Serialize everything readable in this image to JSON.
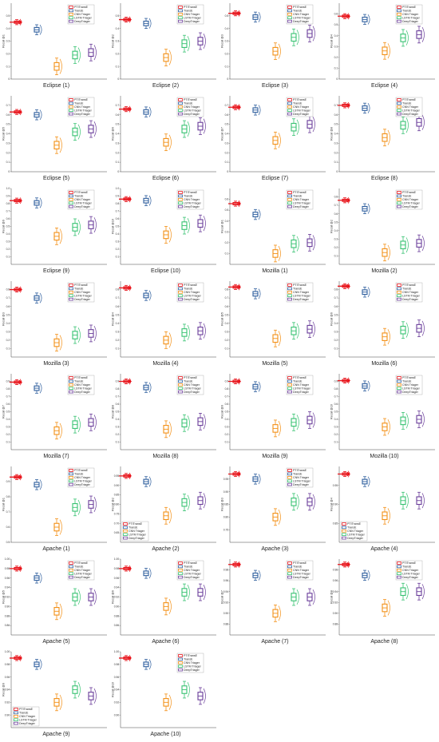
{
  "colors": {
    "PTITransE": "#e8141b",
    "TransE": "#2f5f9e",
    "CNN Triager": "#f39016",
    "LSTM Triager": "#37c271",
    "DeepTriager": "#6a3d9a"
  },
  "chart_data": [
    {
      "type": "box",
      "caption": "Eclipse (1)",
      "ylabel": "Recall @1",
      "ylim": [
        0,
        0.6
      ],
      "yticks": [
        "0",
        "0.1",
        "0.2",
        "0.3",
        "0.4",
        "0.5"
      ],
      "legend": [
        "PTITransE",
        "TransE",
        "CNN Triager",
        "LSTM Triager",
        "DeepTriager"
      ],
      "legend_position": "top-right",
      "medians": [
        0.45,
        0.39,
        0.1,
        0.19,
        0.21
      ]
    },
    {
      "type": "box",
      "caption": "Eclipse (2)",
      "ylabel": "Recall @2",
      "ylim": [
        0,
        0.6
      ],
      "yticks": [
        "0",
        "0.1",
        "0.2",
        "0.3",
        "0.4",
        "0.5"
      ],
      "legend": [
        "PTITransE",
        "TransE",
        "CNN Triager",
        "LSTM Triager",
        "DeepTriager"
      ],
      "legend_position": "top-right",
      "medians": [
        0.47,
        0.44,
        0.17,
        0.28,
        0.3
      ]
    },
    {
      "type": "box",
      "caption": "Eclipse (3)",
      "ylabel": "Recall @3",
      "ylim": [
        0,
        0.6
      ],
      "yticks": [
        "0",
        "0.1",
        "0.2",
        "0.3",
        "0.4",
        "0.5"
      ],
      "legend": [
        "PTITransE",
        "TransE",
        "CNN Triager",
        "LSTM Triager",
        "DeepTriager"
      ],
      "legend_position": "top-right",
      "medians": [
        0.52,
        0.49,
        0.22,
        0.33,
        0.36
      ]
    },
    {
      "type": "box",
      "caption": "Eclipse (4)",
      "ylabel": "Recall @4",
      "ylim": [
        0,
        0.7
      ],
      "yticks": [
        "0",
        "0.1",
        "0.2",
        "0.3",
        "0.4",
        "0.5",
        "0.6"
      ],
      "legend": [
        "PTITransE",
        "TransE",
        "CNN Triager",
        "LSTM Triager",
        "DeepTriager"
      ],
      "legend_position": "top-right",
      "medians": [
        0.58,
        0.55,
        0.26,
        0.38,
        0.41
      ]
    },
    {
      "type": "box",
      "caption": "Eclipse (5)",
      "ylabel": "Recall @5",
      "ylim": [
        0,
        0.8
      ],
      "yticks": [
        "0",
        "0.1",
        "0.2",
        "0.3",
        "0.4",
        "0.5",
        "0.6",
        "0.7"
      ],
      "legend": [
        "PTITransE",
        "TransE",
        "CNN Triager",
        "LSTM Triager",
        "DeepTriager"
      ],
      "legend_position": "top-right",
      "medians": [
        0.63,
        0.6,
        0.28,
        0.42,
        0.45
      ]
    },
    {
      "type": "box",
      "caption": "Eclipse (6)",
      "ylabel": "Recall @6",
      "ylim": [
        0,
        0.8
      ],
      "yticks": [
        "0",
        "0.1",
        "0.2",
        "0.3",
        "0.4",
        "0.5",
        "0.6",
        "0.7"
      ],
      "legend": [
        "PTITransE",
        "TransE",
        "CNN Triager",
        "LSTM Triager",
        "DeepTriager"
      ],
      "legend_position": "top-right",
      "medians": [
        0.66,
        0.63,
        0.31,
        0.45,
        0.48
      ]
    },
    {
      "type": "box",
      "caption": "Eclipse (7)",
      "ylabel": "Recall @7",
      "ylim": [
        0,
        0.8
      ],
      "yticks": [
        "0",
        "0.1",
        "0.2",
        "0.3",
        "0.4",
        "0.5",
        "0.6",
        "0.7"
      ],
      "legend": [
        "PTITransE",
        "TransE",
        "CNN Triager",
        "LSTM Triager",
        "DeepTriager"
      ],
      "legend_position": "top-right",
      "medians": [
        0.68,
        0.65,
        0.33,
        0.47,
        0.5
      ]
    },
    {
      "type": "box",
      "caption": "Eclipse (8)",
      "ylabel": "Recall @8",
      "ylim": [
        0,
        0.8
      ],
      "yticks": [
        "0",
        "0.1",
        "0.2",
        "0.3",
        "0.4",
        "0.5",
        "0.6",
        "0.7"
      ],
      "legend": [
        "PTITransE",
        "TransE",
        "CNN Triager",
        "LSTM Triager",
        "DeepTriager"
      ],
      "legend_position": "top-right",
      "medians": [
        0.7,
        0.67,
        0.36,
        0.49,
        0.52
      ]
    },
    {
      "type": "box",
      "caption": "Eclipse (9)",
      "ylabel": "Recall @9",
      "ylim": [
        0,
        1.0
      ],
      "yticks": [
        "0.1",
        "0.2",
        "0.3",
        "0.4",
        "0.5",
        "0.6",
        "0.7",
        "0.8",
        "0.9",
        "1.0"
      ],
      "legend": [
        "PTITransE",
        "TransE",
        "CNN Triager",
        "LSTM Triager",
        "DeepTriager"
      ],
      "legend_position": "top-right",
      "medians": [
        0.84,
        0.81,
        0.37,
        0.49,
        0.52
      ]
    },
    {
      "type": "box",
      "caption": "Eclipse (10)",
      "ylabel": "Recall @10",
      "ylim": [
        0,
        1.0
      ],
      "yticks": [
        "0.1",
        "0.2",
        "0.3",
        "0.4",
        "0.5",
        "0.6",
        "0.7",
        "0.8",
        "0.9",
        "1.0"
      ],
      "legend": [
        "PTITransE",
        "TransE",
        "CNN Triager",
        "LSTM Triager",
        "DeepTriager"
      ],
      "legend_position": "top-right",
      "medians": [
        0.86,
        0.84,
        0.39,
        0.51,
        0.54
      ]
    },
    {
      "type": "box",
      "caption": "Mozilla (1)",
      "ylabel": "Recall @1",
      "ylim": [
        0,
        0.7
      ],
      "yticks": [
        "0.1",
        "0.2",
        "0.3",
        "0.4",
        "0.5",
        "0.6"
      ],
      "legend": [
        "PTITransE",
        "TransE",
        "CNN Triager",
        "LSTM Triager",
        "DeepTriager"
      ],
      "legend_position": "top-right",
      "medians": [
        0.56,
        0.46,
        0.1,
        0.19,
        0.2
      ]
    },
    {
      "type": "box",
      "caption": "Mozilla (2)",
      "ylabel": "Recall @2",
      "ylim": [
        0,
        0.9
      ],
      "yticks": [
        "0.1",
        "0.2",
        "0.3",
        "0.4",
        "0.5",
        "0.6",
        "0.7",
        "0.8"
      ],
      "legend": [
        "PTITransE",
        "TransE",
        "CNN Triager",
        "LSTM Triager",
        "DeepTriager"
      ],
      "legend_position": "top-right",
      "medians": [
        0.76,
        0.66,
        0.14,
        0.23,
        0.25
      ]
    },
    {
      "type": "box",
      "caption": "Mozilla (3)",
      "ylabel": "Recall @3",
      "ylim": [
        0,
        0.9
      ],
      "yticks": [
        "0.1",
        "0.2",
        "0.3",
        "0.4",
        "0.5",
        "0.6",
        "0.7",
        "0.8"
      ],
      "legend": [
        "PTITransE",
        "TransE",
        "CNN Triager",
        "LSTM Triager",
        "DeepTriager"
      ],
      "legend_position": "top-right",
      "medians": [
        0.8,
        0.7,
        0.17,
        0.26,
        0.28
      ]
    },
    {
      "type": "box",
      "caption": "Mozilla (4)",
      "ylabel": "Recall @4",
      "ylim": [
        0,
        0.9
      ],
      "yticks": [
        "0.1",
        "0.2",
        "0.3",
        "0.4",
        "0.5",
        "0.6",
        "0.7",
        "0.8"
      ],
      "legend": [
        "PTITransE",
        "TransE",
        "CNN Triager",
        "LSTM Triager",
        "DeepTriager"
      ],
      "legend_position": "top-right",
      "medians": [
        0.82,
        0.73,
        0.2,
        0.29,
        0.31
      ]
    },
    {
      "type": "box",
      "caption": "Mozilla (5)",
      "ylabel": "Recall @5",
      "ylim": [
        0,
        0.9
      ],
      "yticks": [
        "0.1",
        "0.2",
        "0.3",
        "0.4",
        "0.5",
        "0.6",
        "0.7",
        "0.8"
      ],
      "legend": [
        "PTITransE",
        "TransE",
        "CNN Triager",
        "LSTM Triager",
        "DeepTriager"
      ],
      "legend_position": "top-right",
      "medians": [
        0.83,
        0.75,
        0.22,
        0.31,
        0.33
      ]
    },
    {
      "type": "box",
      "caption": "Mozilla (6)",
      "ylabel": "Recall @6",
      "ylim": [
        0,
        0.9
      ],
      "yticks": [
        "0.1",
        "0.2",
        "0.3",
        "0.4",
        "0.5",
        "0.6",
        "0.7",
        "0.8"
      ],
      "legend": [
        "PTITransE",
        "TransE",
        "CNN Triager",
        "LSTM Triager",
        "DeepTriager"
      ],
      "legend_position": "top-right",
      "medians": [
        0.84,
        0.77,
        0.24,
        0.32,
        0.34
      ]
    },
    {
      "type": "box",
      "caption": "Mozilla (7)",
      "ylabel": "Recall @7",
      "ylim": [
        0,
        1.0
      ],
      "yticks": [
        "0.1",
        "0.2",
        "0.3",
        "0.4",
        "0.5",
        "0.6",
        "0.7",
        "0.8",
        "0.9"
      ],
      "legend": [
        "PTITransE",
        "TransE",
        "CNN Triager",
        "LSTM Triager",
        "DeepTriager"
      ],
      "legend_position": "top-right",
      "medians": [
        0.89,
        0.81,
        0.25,
        0.33,
        0.36
      ]
    },
    {
      "type": "box",
      "caption": "Mozilla (8)",
      "ylabel": "Recall @8",
      "ylim": [
        0,
        1.0
      ],
      "yticks": [
        "0.1",
        "0.2",
        "0.3",
        "0.4",
        "0.5",
        "0.6",
        "0.7",
        "0.8",
        "0.9"
      ],
      "legend": [
        "PTITransE",
        "TransE",
        "CNN Triager",
        "LSTM Triager",
        "DeepTriager"
      ],
      "legend_position": "top-right",
      "medians": [
        0.9,
        0.82,
        0.27,
        0.35,
        0.37
      ]
    },
    {
      "type": "box",
      "caption": "Mozilla (9)",
      "ylabel": "Recall @9",
      "ylim": [
        0,
        1.0
      ],
      "yticks": [
        "0.1",
        "0.2",
        "0.3",
        "0.4",
        "0.5",
        "0.6",
        "0.7",
        "0.8",
        "0.9"
      ],
      "legend": [
        "PTITransE",
        "TransE",
        "CNN Triager",
        "LSTM Triager",
        "DeepTriager"
      ],
      "legend_position": "top-right",
      "medians": [
        0.9,
        0.83,
        0.28,
        0.36,
        0.39
      ]
    },
    {
      "type": "box",
      "caption": "Mozilla (10)",
      "ylabel": "Recall @10",
      "ylim": [
        0,
        1.0
      ],
      "yticks": [
        "0.1",
        "0.2",
        "0.3",
        "0.4",
        "0.5",
        "0.6",
        "0.7",
        "0.8",
        "0.9"
      ],
      "legend": [
        "PTITransE",
        "TransE",
        "CNN Triager",
        "LSTM Triager",
        "DeepTriager"
      ],
      "legend_position": "top-right",
      "medians": [
        0.91,
        0.84,
        0.3,
        0.38,
        0.4
      ]
    },
    {
      "type": "box",
      "caption": "Apache (1)",
      "ylabel": "Recall @1",
      "ylim": [
        0.5,
        1.0
      ],
      "yticks": [
        "0.5",
        "0.6",
        "0.7",
        "0.8",
        "0.9"
      ],
      "legend": [
        "PTITransE",
        "TransE",
        "CNN Triager",
        "LSTM Triager",
        "DeepTriager"
      ],
      "legend_position": "top-right",
      "medians": [
        0.93,
        0.88,
        0.6,
        0.73,
        0.75
      ]
    },
    {
      "type": "box",
      "caption": "Apache (2)",
      "ylabel": "Recall @2",
      "ylim": [
        0.6,
        1.0
      ],
      "yticks": [
        "0.65",
        "0.70",
        "0.75",
        "0.80",
        "0.85",
        "0.90",
        "0.95"
      ],
      "legend": [
        "PTITransE",
        "TransE",
        "CNN Triager",
        "LSTM Triager",
        "DeepTriager"
      ],
      "legend_position": "bottom-left",
      "medians": [
        0.95,
        0.92,
        0.74,
        0.81,
        0.82
      ]
    },
    {
      "type": "box",
      "caption": "Apache (3)",
      "ylabel": "Recall @3",
      "ylim": [
        0.7,
        1.0
      ],
      "yticks": [
        "0.75",
        "0.80",
        "0.85",
        "0.90",
        "0.95"
      ],
      "legend": [
        "PTITransE",
        "TransE",
        "CNN Triager",
        "LSTM Triager",
        "DeepTriager"
      ],
      "legend_position": "top-right",
      "medians": [
        0.97,
        0.95,
        0.8,
        0.86,
        0.86
      ]
    },
    {
      "type": "box",
      "caption": "Apache (4)",
      "ylabel": "Recall @4",
      "ylim": [
        0.8,
        1.0
      ],
      "yticks": [
        "0.85",
        "0.90",
        "0.95"
      ],
      "legend": [
        "PTITransE",
        "TransE",
        "CNN Triager",
        "LSTM Triager",
        "DeepTriager"
      ],
      "legend_position": "bottom-left",
      "medians": [
        0.98,
        0.96,
        0.87,
        0.91,
        0.91
      ]
    },
    {
      "type": "box",
      "caption": "Apache (5)",
      "ylabel": "Recall @5",
      "ylim": [
        0.84,
        1.0
      ],
      "yticks": [
        "0.86",
        "0.88",
        "0.90",
        "0.92",
        "0.94",
        "0.96",
        "0.98",
        "1.00"
      ],
      "legend": [
        "PTITransE",
        "TransE",
        "CNN Triager",
        "LSTM Triager",
        "DeepTriager"
      ],
      "legend_position": "top-right",
      "medians": [
        0.98,
        0.96,
        0.89,
        0.92,
        0.92
      ]
    },
    {
      "type": "box",
      "caption": "Apache (6)",
      "ylabel": "Recall @6",
      "ylim": [
        0.84,
        1.0
      ],
      "yticks": [
        "0.86",
        "0.88",
        "0.90",
        "0.92",
        "0.94",
        "0.96",
        "0.98",
        "1.00"
      ],
      "legend": [
        "PTITransE",
        "TransE",
        "CNN Triager",
        "LSTM Triager",
        "DeepTriager"
      ],
      "legend_position": "top-right",
      "medians": [
        0.98,
        0.97,
        0.9,
        0.93,
        0.93
      ]
    },
    {
      "type": "box",
      "caption": "Apache (7)",
      "ylabel": "Recall @7",
      "ylim": [
        0.86,
        1.0
      ],
      "yticks": [
        "0.88",
        "0.90",
        "0.92",
        "0.94",
        "0.96",
        "0.98"
      ],
      "legend": [
        "PTITransE",
        "TransE",
        "CNN Triager",
        "LSTM Triager",
        "DeepTriager"
      ],
      "legend_position": "top-right",
      "medians": [
        0.99,
        0.97,
        0.9,
        0.93,
        0.93
      ]
    },
    {
      "type": "box",
      "caption": "Apache (8)",
      "ylabel": "Recall @8",
      "ylim": [
        0.86,
        1.0
      ],
      "yticks": [
        "0.88",
        "0.90",
        "0.92",
        "0.94",
        "0.96",
        "0.98"
      ],
      "legend": [
        "PTITransE",
        "TransE",
        "CNN Triager",
        "LSTM Triager",
        "DeepTriager"
      ],
      "legend_position": "top-right",
      "medians": [
        0.99,
        0.97,
        0.91,
        0.94,
        0.94
      ]
    },
    {
      "type": "box",
      "caption": "Apache (9)",
      "ylabel": "Recall @9",
      "ylim": [
        0.88,
        1.0
      ],
      "yticks": [
        "0.90",
        "0.92",
        "0.94",
        "0.96",
        "0.98",
        "1.00"
      ],
      "legend": [
        "PTITransE",
        "TransE",
        "CNN Triager",
        "LSTM Triager",
        "DeepTriager"
      ],
      "legend_position": "bottom-left",
      "medians": [
        0.99,
        0.98,
        0.92,
        0.94,
        0.93
      ]
    },
    {
      "type": "box",
      "caption": "Apache (10)",
      "ylabel": "Recall @10",
      "ylim": [
        0.88,
        1.0
      ],
      "yticks": [
        "0.90",
        "0.92",
        "0.94",
        "0.96",
        "0.98",
        "1.00"
      ],
      "legend": [
        "PTITransE",
        "TransE",
        "CNN Triager",
        "LSTM Triager",
        "DeepTriager"
      ],
      "legend_position": "top-right",
      "medians": [
        0.99,
        0.98,
        0.92,
        0.94,
        0.93
      ]
    }
  ]
}
